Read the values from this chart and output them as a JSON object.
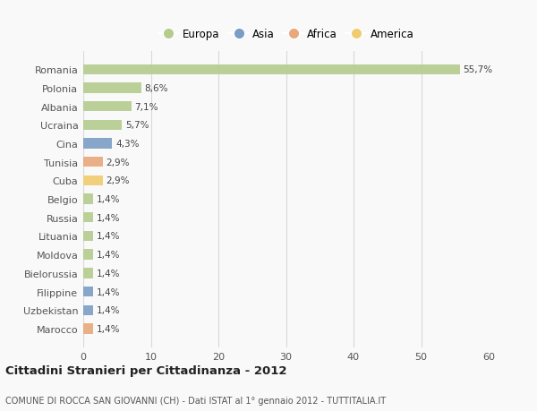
{
  "categories": [
    "Romania",
    "Polonia",
    "Albania",
    "Ucraina",
    "Cina",
    "Tunisia",
    "Cuba",
    "Belgio",
    "Russia",
    "Lituania",
    "Moldova",
    "Bielorussia",
    "Filippine",
    "Uzbekistan",
    "Marocco"
  ],
  "values": [
    55.7,
    8.6,
    7.1,
    5.7,
    4.3,
    2.9,
    2.9,
    1.4,
    1.4,
    1.4,
    1.4,
    1.4,
    1.4,
    1.4,
    1.4
  ],
  "labels": [
    "55,7%",
    "8,6%",
    "7,1%",
    "5,7%",
    "4,3%",
    "2,9%",
    "2,9%",
    "1,4%",
    "1,4%",
    "1,4%",
    "1,4%",
    "1,4%",
    "1,4%",
    "1,4%",
    "1,4%"
  ],
  "bar_colors": [
    "#b5cc8e",
    "#b5cc8e",
    "#b5cc8e",
    "#b5cc8e",
    "#7b9dc5",
    "#e8a87c",
    "#f0cc70",
    "#b5cc8e",
    "#b5cc8e",
    "#b5cc8e",
    "#b5cc8e",
    "#b5cc8e",
    "#7b9dc5",
    "#7b9dc5",
    "#e8a87c"
  ],
  "legend_labels": [
    "Europa",
    "Asia",
    "Africa",
    "America"
  ],
  "legend_colors": [
    "#b5cc8e",
    "#7b9dc5",
    "#e8a87c",
    "#f0cc70"
  ],
  "title": "Cittadini Stranieri per Cittadinanza - 2012",
  "subtitle": "COMUNE DI ROCCA SAN GIOVANNI (CH) - Dati ISTAT al 1° gennaio 2012 - TUTTITALIA.IT",
  "xlim": [
    0,
    60
  ],
  "xticks": [
    0,
    10,
    20,
    30,
    40,
    50,
    60
  ],
  "background_color": "#f9f9f9",
  "grid_color": "#d8d8d8",
  "bar_height": 0.55
}
